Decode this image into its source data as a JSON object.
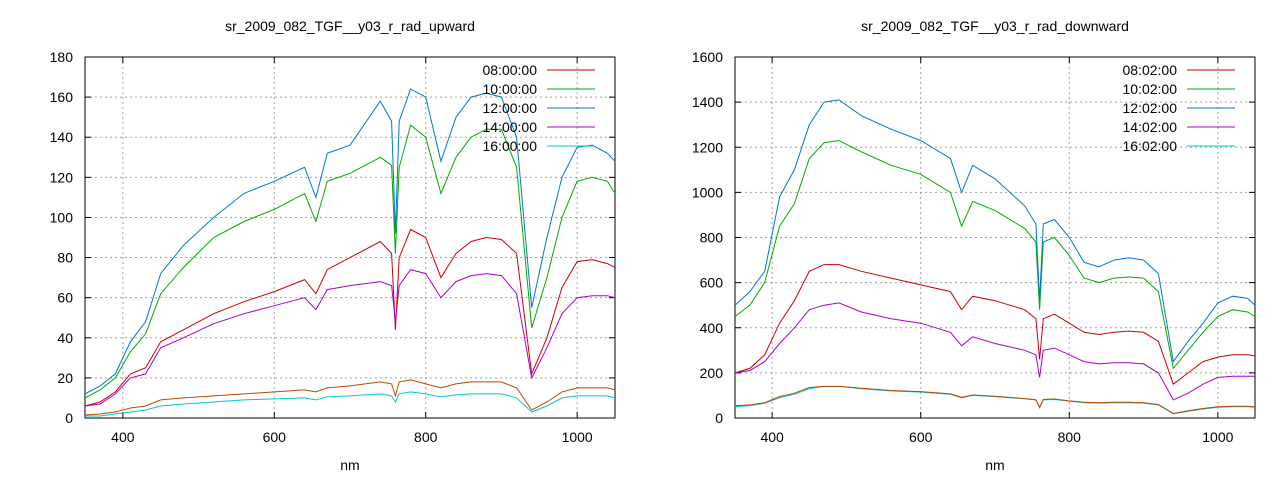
{
  "chart_data": [
    {
      "type": "line",
      "title": "sr_2009_082_TGF__y03_r_rad_upward",
      "xlabel": "nm",
      "ylabel": "",
      "xlim": [
        350,
        1050
      ],
      "ylim": [
        0,
        180
      ],
      "x_ticks": [
        400,
        600,
        800,
        1000
      ],
      "y_ticks": [
        0,
        20,
        40,
        60,
        80,
        100,
        120,
        140,
        160,
        180
      ],
      "grid": true,
      "legend_position": "top-right",
      "x": [
        350,
        370,
        390,
        410,
        430,
        450,
        480,
        520,
        560,
        600,
        640,
        655,
        670,
        700,
        740,
        755,
        760,
        765,
        780,
        800,
        820,
        840,
        860,
        880,
        900,
        920,
        940,
        960,
        980,
        1000,
        1020,
        1040,
        1050
      ],
      "series": [
        {
          "name": "08:00:00",
          "color": "#cc0000",
          "values": [
            6,
            8,
            13,
            22,
            25,
            38,
            44,
            52,
            58,
            63,
            69,
            62,
            74,
            80,
            88,
            82,
            44,
            80,
            94,
            90,
            70,
            82,
            88,
            90,
            89,
            82,
            22,
            40,
            65,
            78,
            79,
            77,
            75
          ]
        },
        {
          "name": "10:00:00",
          "color": "#00aa00",
          "values": [
            10,
            14,
            20,
            33,
            42,
            62,
            75,
            90,
            98,
            104,
            112,
            98,
            118,
            122,
            130,
            126,
            82,
            125,
            146,
            140,
            112,
            130,
            140,
            144,
            144,
            125,
            45,
            70,
            100,
            118,
            120,
            118,
            112
          ]
        },
        {
          "name": "12:00:00",
          "color": "#0077cc",
          "values": [
            12,
            16,
            22,
            38,
            48,
            72,
            86,
            100,
            112,
            118,
            125,
            110,
            132,
            136,
            158,
            148,
            92,
            148,
            164,
            160,
            128,
            150,
            160,
            162,
            160,
            140,
            55,
            90,
            120,
            135,
            136,
            132,
            128
          ]
        },
        {
          "name": "14:00:00",
          "color": "#aa00cc",
          "values": [
            6,
            7,
            12,
            20,
            22,
            35,
            40,
            47,
            52,
            56,
            60,
            54,
            64,
            66,
            68,
            66,
            48,
            66,
            74,
            72,
            60,
            68,
            71,
            72,
            71,
            62,
            20,
            35,
            52,
            60,
            61,
            61,
            60
          ]
        },
        {
          "name": "16:00:00",
          "color": "#00c8c8",
          "values": [
            1,
            1,
            2,
            3,
            4,
            6,
            7,
            8,
            9,
            9.5,
            10,
            9,
            10.5,
            11,
            12,
            11,
            8,
            12,
            13,
            12,
            10.5,
            11.5,
            12,
            12,
            12,
            10,
            3,
            6,
            10,
            11,
            11,
            11,
            10
          ]
        },
        {
          "name": "",
          "color": "#b84a00",
          "values": [
            1.5,
            2,
            3,
            5,
            6,
            9,
            10,
            11,
            12,
            13,
            14,
            13,
            15,
            16,
            18,
            17,
            11,
            18,
            19,
            17,
            15,
            17,
            18,
            18,
            18,
            15,
            4,
            8,
            13,
            15,
            15,
            15,
            14
          ]
        }
      ]
    },
    {
      "type": "line",
      "title": "sr_2009_082_TGF__y03_r_rad_downward",
      "xlabel": "nm",
      "ylabel": "",
      "xlim": [
        350,
        1050
      ],
      "ylim": [
        0,
        1600
      ],
      "x_ticks": [
        400,
        600,
        800,
        1000
      ],
      "y_ticks": [
        0,
        200,
        400,
        600,
        800,
        1000,
        1200,
        1400,
        1600
      ],
      "grid": true,
      "legend_position": "top-right",
      "x": [
        350,
        370,
        390,
        410,
        430,
        450,
        470,
        490,
        520,
        560,
        600,
        640,
        655,
        670,
        700,
        740,
        755,
        760,
        765,
        780,
        800,
        820,
        840,
        860,
        880,
        900,
        920,
        940,
        960,
        980,
        1000,
        1020,
        1040,
        1050
      ],
      "series": [
        {
          "name": "08:02:00",
          "color": "#cc0000",
          "values": [
            200,
            220,
            280,
            420,
            520,
            650,
            680,
            680,
            650,
            620,
            590,
            560,
            480,
            540,
            520,
            480,
            440,
            260,
            440,
            460,
            420,
            380,
            370,
            380,
            385,
            380,
            340,
            150,
            200,
            250,
            270,
            280,
            280,
            275
          ]
        },
        {
          "name": "10:02:00",
          "color": "#00aa00",
          "values": [
            450,
            500,
            600,
            850,
            950,
            1150,
            1220,
            1230,
            1180,
            1120,
            1080,
            1000,
            850,
            960,
            920,
            840,
            780,
            480,
            780,
            800,
            720,
            620,
            600,
            620,
            625,
            620,
            560,
            220,
            300,
            380,
            450,
            480,
            470,
            450
          ]
        },
        {
          "name": "12:02:00",
          "color": "#0077cc",
          "values": [
            500,
            560,
            650,
            980,
            1100,
            1300,
            1400,
            1410,
            1340,
            1280,
            1230,
            1150,
            1000,
            1120,
            1060,
            940,
            860,
            520,
            860,
            880,
            800,
            690,
            670,
            700,
            710,
            700,
            640,
            250,
            340,
            420,
            510,
            540,
            530,
            500
          ]
        },
        {
          "name": "14:02:00",
          "color": "#aa00cc",
          "values": [
            200,
            210,
            250,
            330,
            400,
            480,
            500,
            510,
            470,
            440,
            420,
            380,
            320,
            360,
            330,
            300,
            280,
            180,
            300,
            310,
            280,
            250,
            240,
            245,
            245,
            240,
            200,
            80,
            110,
            150,
            180,
            185,
            185,
            185
          ]
        },
        {
          "name": "16:02:00",
          "color": "#00c8c8",
          "values": [
            50,
            55,
            65,
            90,
            105,
            130,
            140,
            140,
            130,
            120,
            115,
            105,
            90,
            100,
            95,
            85,
            80,
            45,
            80,
            82,
            75,
            68,
            66,
            68,
            68,
            66,
            58,
            18,
            30,
            40,
            48,
            50,
            50,
            48
          ]
        },
        {
          "name": "",
          "color": "#b84a00",
          "values": [
            55,
            58,
            68,
            95,
            110,
            135,
            140,
            140,
            132,
            122,
            117,
            107,
            92,
            102,
            96,
            86,
            80,
            48,
            82,
            84,
            76,
            70,
            68,
            70,
            70,
            68,
            60,
            20,
            32,
            42,
            50,
            52,
            52,
            50
          ]
        }
      ]
    }
  ]
}
